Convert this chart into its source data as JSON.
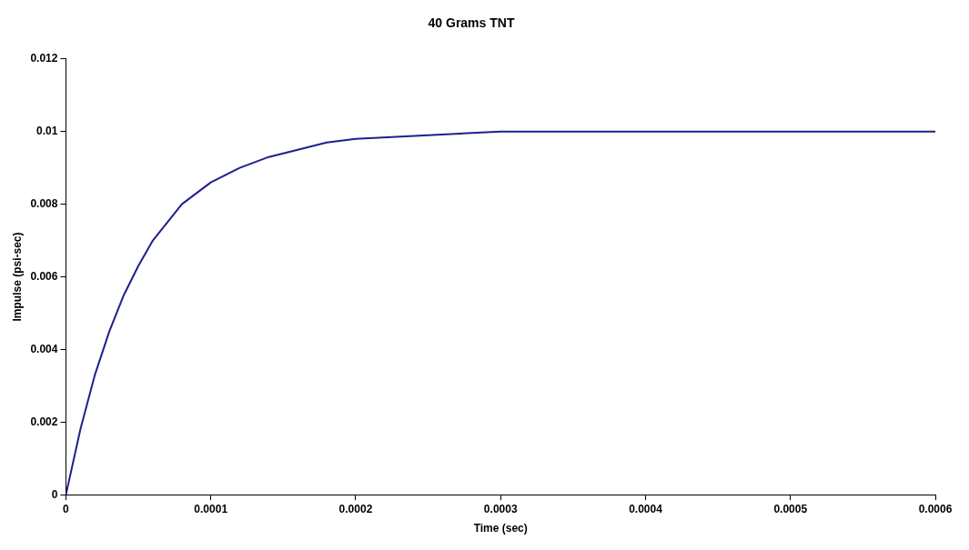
{
  "chart_data": {
    "type": "line",
    "title": "40 Grams TNT",
    "xlabel": "Time (sec)",
    "ylabel": "Impulse (psi-sec)",
    "x": [
      0,
      1e-05,
      2e-05,
      3e-05,
      4e-05,
      5e-05,
      6e-05,
      7e-05,
      8e-05,
      9e-05,
      0.0001,
      0.00012,
      0.00014,
      0.00016,
      0.00018,
      0.0002,
      0.00025,
      0.0003,
      0.0004,
      0.0006
    ],
    "series": [
      {
        "color": "#1f1f8f",
        "values": [
          0,
          0.0018,
          0.0033,
          0.0045,
          0.0055,
          0.0063,
          0.007,
          0.0075,
          0.008,
          0.0083,
          0.0086,
          0.009,
          0.0093,
          0.0095,
          0.0097,
          0.0098,
          0.0099,
          0.01,
          0.01,
          0.01
        ]
      }
    ],
    "xlim": [
      0,
      0.0006
    ],
    "xticks": [
      0,
      0.0001,
      0.0002,
      0.0003,
      0.0004,
      0.0005,
      0.0006
    ],
    "ylim": [
      0,
      0.012
    ],
    "yticks": [
      0,
      0.002,
      0.004,
      0.006,
      0.008,
      0.01,
      0.012
    ],
    "grid": false,
    "legend": false,
    "marker": "none",
    "line_style": "solid"
  }
}
